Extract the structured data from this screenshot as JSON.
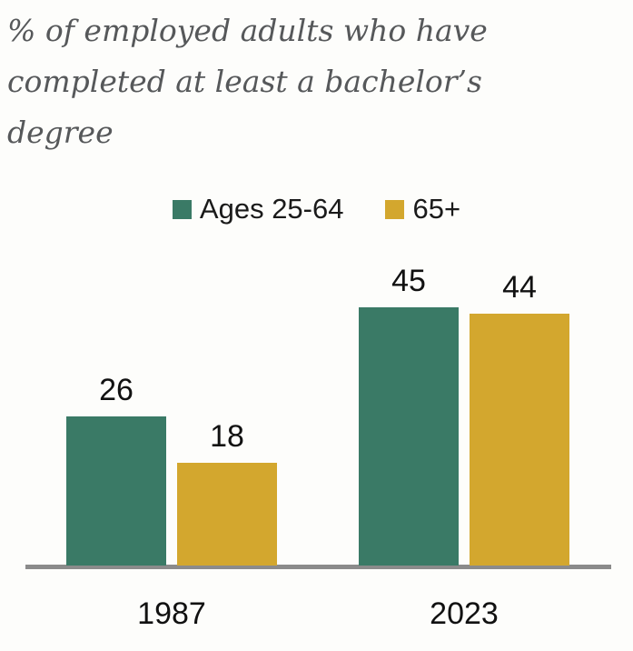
{
  "title": {
    "lines": [
      "% of employed adults who have",
      "completed at least a bachelor’s",
      "degree"
    ]
  },
  "colors": {
    "background": "#fdfdfb",
    "title_text": "#56585a",
    "label_text": "#111111",
    "axis_line": "#8b8b8b",
    "series_green": "#3a7a66",
    "series_gold": "#d3a72e"
  },
  "chart_data": {
    "type": "bar",
    "title": "% of employed adults who have completed at least a bachelor’s degree",
    "categories": [
      "1987",
      "2023"
    ],
    "series": [
      {
        "name": "Ages 25-64",
        "color": "#3a7a66",
        "values": [
          26,
          45
        ]
      },
      {
        "name": "65+",
        "color": "#d3a72e",
        "values": [
          18,
          44
        ]
      }
    ],
    "value_labels_shown": true,
    "legend_position": "top",
    "grid": false,
    "y_axis_shown": false,
    "ylim": [
      0,
      50
    ]
  }
}
